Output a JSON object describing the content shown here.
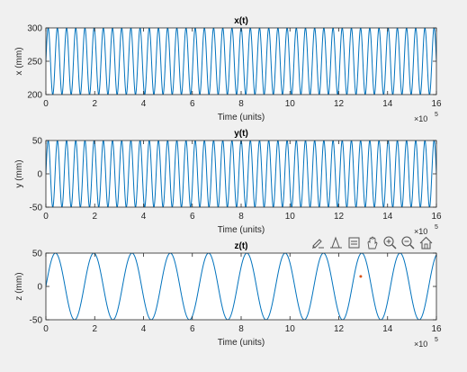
{
  "chart_data": [
    {
      "type": "line",
      "title": "x(t)",
      "xlabel": "Time (units)",
      "ylabel": "x (mm)",
      "xlim": [
        0,
        1600000
      ],
      "ylim": [
        200,
        300
      ],
      "x_ticks": [
        0,
        200000,
        400000,
        600000,
        800000,
        1000000,
        1200000,
        1400000,
        1600000
      ],
      "x_tick_labels": [
        "0",
        "2",
        "4",
        "6",
        "8",
        "10",
        "12",
        "14",
        "16"
      ],
      "y_ticks": [
        200,
        250,
        300
      ],
      "y_tick_labels": [
        "200",
        "250",
        "300"
      ],
      "x_exponent_label": "×10",
      "x_exponent_power": "5",
      "series": [
        {
          "kind": "sine",
          "offset": 250,
          "amplitude": 50,
          "cycles_per_range": 42.5,
          "color": "#0072bd"
        }
      ]
    },
    {
      "type": "line",
      "title": "y(t)",
      "xlabel": "Time (units)",
      "ylabel": "y (mm)",
      "xlim": [
        0,
        1600000
      ],
      "ylim": [
        -50,
        50
      ],
      "x_ticks": [
        0,
        200000,
        400000,
        600000,
        800000,
        1000000,
        1200000,
        1400000,
        1600000
      ],
      "x_tick_labels": [
        "0",
        "2",
        "4",
        "6",
        "8",
        "10",
        "12",
        "14",
        "16"
      ],
      "y_ticks": [
        -50,
        0,
        50
      ],
      "y_tick_labels": [
        "-50",
        "0",
        "50"
      ],
      "x_exponent_label": "×10",
      "x_exponent_power": "5",
      "series": [
        {
          "kind": "sine",
          "offset": 0,
          "amplitude": 50,
          "cycles_per_range": 42.5,
          "color": "#0072bd"
        }
      ]
    },
    {
      "type": "line",
      "title": "z(t)",
      "xlabel": "Time (units)",
      "ylabel": "z (mm)",
      "xlim": [
        0,
        1600000
      ],
      "ylim": [
        -50,
        50
      ],
      "x_ticks": [
        0,
        200000,
        400000,
        600000,
        800000,
        1000000,
        1200000,
        1400000,
        1600000
      ],
      "x_tick_labels": [
        "0",
        "2",
        "4",
        "6",
        "8",
        "10",
        "12",
        "14",
        "16"
      ],
      "y_ticks": [
        -50,
        0,
        50
      ],
      "y_tick_labels": [
        "-50",
        "0",
        "50"
      ],
      "x_exponent_label": "×10",
      "x_exponent_power": "5",
      "series": [
        {
          "kind": "sine",
          "offset": 0,
          "amplitude": 50,
          "cycles_per_range": 10.2,
          "color": "#0072bd"
        }
      ],
      "marker": {
        "x": 1290000,
        "y": 15,
        "color": "#d95319"
      }
    }
  ],
  "toolbar": {
    "icons": [
      "brush-icon",
      "data-tips-icon",
      "legend-icon",
      "pan-icon",
      "zoom-in-icon",
      "zoom-out-icon",
      "home-icon"
    ]
  },
  "colors": {
    "background": "#f0f0f0",
    "axes_bg": "#ffffff",
    "line": "#0072bd",
    "axis": "#262626"
  }
}
